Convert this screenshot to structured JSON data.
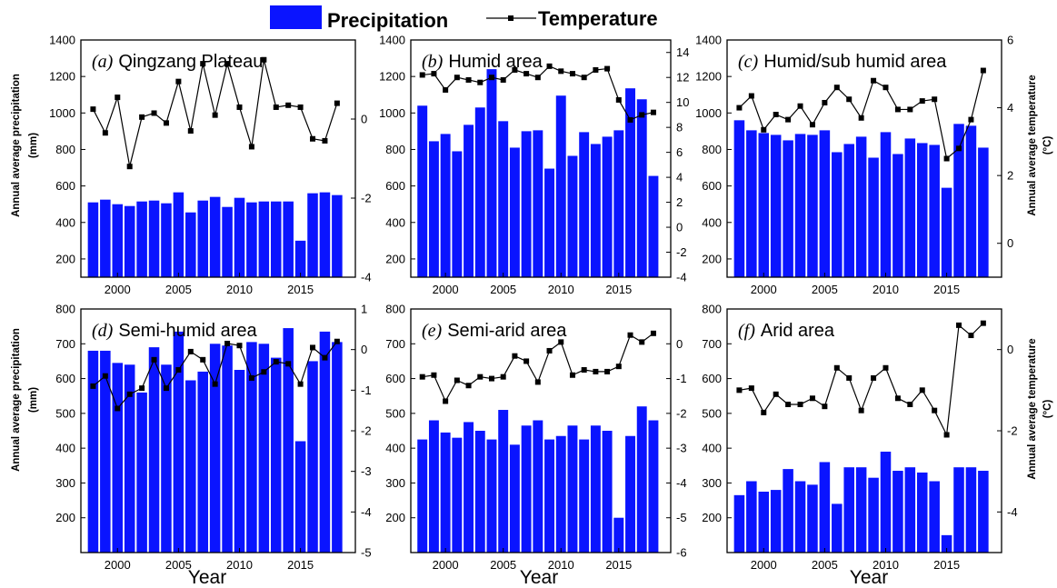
{
  "legend": {
    "precip_label": "Precipitation",
    "temp_label": "Temperature"
  },
  "colors": {
    "bar": "#0a14ff",
    "line": "#000000"
  },
  "axis_titles": {
    "left": "Annual average precipitation",
    "left_unit": "(mm)",
    "right": "Annual average temperature",
    "right_unit": "(°C)",
    "x": "Year"
  },
  "chart_data": [
    {
      "type": "bar+line",
      "label_letter": "(a)",
      "title": "Qingzang Plateau",
      "years": [
        1998,
        1999,
        2000,
        2001,
        2002,
        2003,
        2004,
        2005,
        2006,
        2007,
        2008,
        2009,
        2010,
        2011,
        2012,
        2013,
        2014,
        2015,
        2016,
        2017,
        2018
      ],
      "precip": [
        510,
        525,
        500,
        490,
        515,
        520,
        505,
        565,
        455,
        520,
        540,
        485,
        535,
        510,
        515,
        515,
        515,
        300,
        560,
        565,
        550
      ],
      "temp": [
        0.25,
        -0.35,
        0.55,
        -1.2,
        0.05,
        0.15,
        -0.1,
        0.95,
        -0.3,
        1.4,
        0.1,
        1.4,
        0.3,
        -0.7,
        1.5,
        0.3,
        0.35,
        0.3,
        -0.5,
        -0.55,
        0.4
      ],
      "ylim_left": [
        100,
        1400
      ],
      "ylim_right": [
        -4,
        2
      ],
      "yticks_left": [
        200,
        400,
        600,
        800,
        1000,
        1200,
        1400
      ],
      "yticks_right": [
        -4,
        -2,
        0
      ],
      "xticks": [
        2000,
        2005,
        2010,
        2015
      ]
    },
    {
      "type": "bar+line",
      "label_letter": "(b)",
      "title": "Humid area",
      "years": [
        1998,
        1999,
        2000,
        2001,
        2002,
        2003,
        2004,
        2005,
        2006,
        2007,
        2008,
        2009,
        2010,
        2011,
        2012,
        2013,
        2014,
        2015,
        2016,
        2017,
        2018
      ],
      "precip": [
        1040,
        845,
        885,
        790,
        935,
        1030,
        1240,
        955,
        810,
        900,
        905,
        695,
        1095,
        765,
        895,
        830,
        870,
        905,
        1135,
        1075,
        655
      ],
      "temp": [
        12.2,
        12.3,
        11.0,
        12.0,
        11.8,
        11.6,
        12.0,
        11.8,
        12.6,
        12.3,
        12.0,
        12.9,
        12.5,
        12.3,
        12.0,
        12.6,
        12.7,
        10.2,
        8.6,
        9.0,
        9.2
      ],
      "ylim_left": [
        100,
        1400
      ],
      "ylim_right": [
        -4,
        15
      ],
      "yticks_left": [
        200,
        400,
        600,
        800,
        1000,
        1200,
        1400
      ],
      "yticks_right": [
        -4,
        -2,
        0,
        2,
        4,
        6,
        8,
        10,
        12,
        14
      ],
      "xticks": [
        2000,
        2005,
        2010,
        2015
      ]
    },
    {
      "type": "bar+line",
      "label_letter": "(c)",
      "title": "Humid/sub humid area",
      "years": [
        1998,
        1999,
        2000,
        2001,
        2002,
        2003,
        2004,
        2005,
        2006,
        2007,
        2008,
        2009,
        2010,
        2011,
        2012,
        2013,
        2014,
        2015,
        2016,
        2017,
        2018
      ],
      "precip": [
        960,
        905,
        890,
        880,
        850,
        885,
        880,
        905,
        785,
        830,
        870,
        755,
        895,
        775,
        860,
        835,
        825,
        590,
        940,
        930,
        810
      ],
      "temp": [
        4.0,
        4.35,
        3.35,
        3.8,
        3.65,
        4.05,
        3.5,
        4.15,
        4.6,
        4.25,
        3.7,
        4.8,
        4.6,
        3.95,
        3.95,
        4.2,
        4.25,
        2.5,
        2.8,
        3.65,
        5.1
      ],
      "ylim_left": [
        100,
        1400
      ],
      "ylim_right": [
        -1,
        6
      ],
      "yticks_left": [
        200,
        400,
        600,
        800,
        1000,
        1200,
        1400
      ],
      "yticks_right": [
        0,
        2,
        4,
        6
      ],
      "xticks": [
        2000,
        2005,
        2010,
        2015
      ]
    },
    {
      "type": "bar+line",
      "label_letter": "(d)",
      "title": "Semi-humid area",
      "years": [
        1998,
        1999,
        2000,
        2001,
        2002,
        2003,
        2004,
        2005,
        2006,
        2007,
        2008,
        2009,
        2010,
        2011,
        2012,
        2013,
        2014,
        2015,
        2016,
        2017,
        2018
      ],
      "precip": [
        680,
        680,
        645,
        640,
        560,
        690,
        640,
        735,
        595,
        620,
        700,
        695,
        625,
        705,
        700,
        660,
        745,
        420,
        650,
        735,
        705
      ],
      "temp": [
        -0.9,
        -0.65,
        -1.45,
        -1.1,
        -0.95,
        -0.25,
        -0.95,
        -0.5,
        -0.05,
        -0.25,
        -0.85,
        0.15,
        0.1,
        -0.7,
        -0.55,
        -0.3,
        -0.35,
        -0.85,
        0.05,
        -0.2,
        0.2
      ],
      "ylim_left": [
        100,
        800
      ],
      "ylim_right": [
        -5,
        1
      ],
      "yticks_left": [
        200,
        300,
        400,
        500,
        600,
        700,
        800
      ],
      "yticks_right": [
        -5,
        -4,
        -3,
        -2,
        -1,
        0,
        1
      ],
      "xticks": [
        2000,
        2005,
        2010,
        2015
      ]
    },
    {
      "type": "bar+line",
      "label_letter": "(e)",
      "title": "Semi-arid area",
      "years": [
        1998,
        1999,
        2000,
        2001,
        2002,
        2003,
        2004,
        2005,
        2006,
        2007,
        2008,
        2009,
        2010,
        2011,
        2012,
        2013,
        2014,
        2015,
        2016,
        2017,
        2018
      ],
      "precip": [
        425,
        480,
        445,
        430,
        475,
        450,
        425,
        510,
        410,
        465,
        480,
        425,
        435,
        465,
        425,
        465,
        450,
        200,
        435,
        520,
        480
      ],
      "temp": [
        -0.95,
        -0.9,
        -1.65,
        -1.05,
        -1.2,
        -0.95,
        -1.0,
        -0.95,
        -0.35,
        -0.5,
        -1.1,
        -0.2,
        0.05,
        -0.9,
        -0.75,
        -0.8,
        -0.8,
        -0.65,
        0.25,
        0.05,
        0.3
      ],
      "ylim_left": [
        100,
        800
      ],
      "ylim_right": [
        -6,
        1
      ],
      "yticks_left": [
        200,
        300,
        400,
        500,
        600,
        700,
        800
      ],
      "yticks_right": [
        -6,
        -5,
        -4,
        -3,
        -2,
        -1,
        0
      ],
      "xticks": [
        2000,
        2005,
        2010,
        2015
      ]
    },
    {
      "type": "bar+line",
      "label_letter": "(f)",
      "title": "Arid area",
      "years": [
        1998,
        1999,
        2000,
        2001,
        2002,
        2003,
        2004,
        2005,
        2006,
        2007,
        2008,
        2009,
        2010,
        2011,
        2012,
        2013,
        2014,
        2015,
        2016,
        2017,
        2018
      ],
      "precip": [
        265,
        305,
        275,
        280,
        340,
        305,
        295,
        360,
        240,
        345,
        345,
        315,
        390,
        335,
        345,
        330,
        305,
        150,
        345,
        345,
        335
      ],
      "temp": [
        -1.0,
        -0.95,
        -1.55,
        -1.1,
        -1.35,
        -1.35,
        -1.2,
        -1.4,
        -0.45,
        -0.7,
        -1.5,
        -0.7,
        -0.45,
        -1.2,
        -1.35,
        -1.0,
        -1.5,
        -2.1,
        0.6,
        0.35,
        0.65
      ],
      "ylim_left": [
        100,
        800
      ],
      "ylim_right": [
        -5,
        1
      ],
      "yticks_left": [
        200,
        300,
        400,
        500,
        600,
        700,
        800
      ],
      "yticks_right": [
        -4,
        -2,
        0
      ],
      "xticks": [
        2000,
        2005,
        2010,
        2015
      ]
    }
  ]
}
